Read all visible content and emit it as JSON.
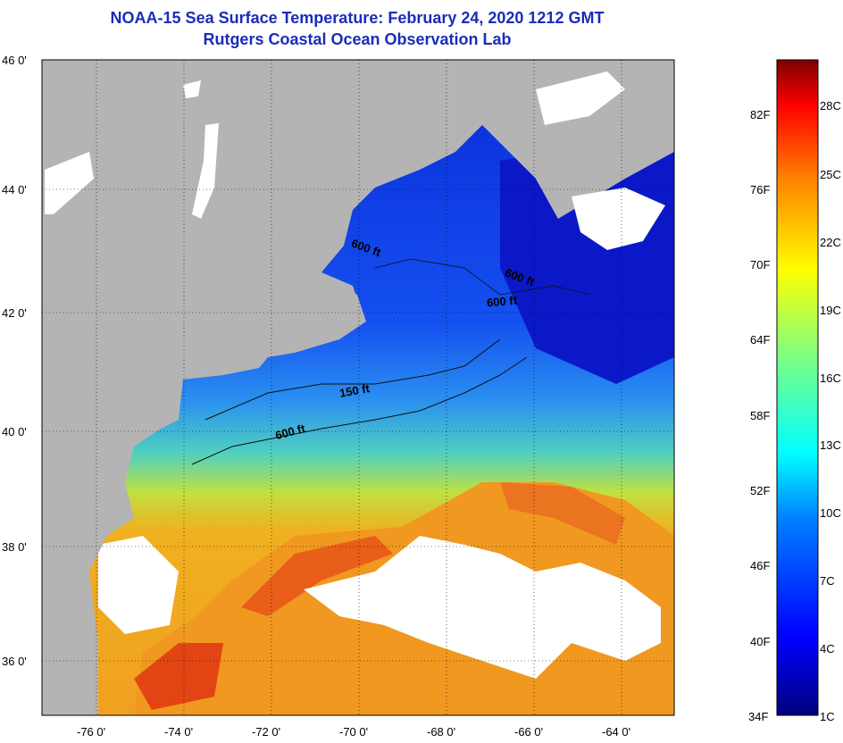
{
  "header": {
    "title": "NOAA-15 Sea Surface Temperature:  February 24, 2020 1212 GMT",
    "subtitle": "Rutgers Coastal Ocean Observation Lab"
  },
  "map": {
    "lat_labels": [
      "46 0'",
      "44 0'",
      "42 0'",
      "40 0'",
      "38 0'",
      "36 0'"
    ],
    "lon_labels": [
      "-76 0'",
      "-74 0'",
      "-72 0'",
      "-70 0'",
      "-68 0'",
      "-66 0'",
      "-64 0'"
    ],
    "contour_labels": [
      "600 ft",
      "600 ft",
      "600 ft",
      "150 ft",
      "600 ft"
    ],
    "colors": {
      "land": "#b4b4b4",
      "cloud": "#ffffff",
      "cold": "#1030e0",
      "warm": "#f0a020",
      "hot": "#e03010"
    }
  },
  "colorbar": {
    "fahrenheit_labels": [
      "82F",
      "76F",
      "70F",
      "64F",
      "58F",
      "52F",
      "46F",
      "40F",
      "34F"
    ],
    "celsius_labels": [
      "28C",
      "25C",
      "22C",
      "19C",
      "16C",
      "13C",
      "10C",
      "7C",
      "4C",
      "1C"
    ]
  }
}
